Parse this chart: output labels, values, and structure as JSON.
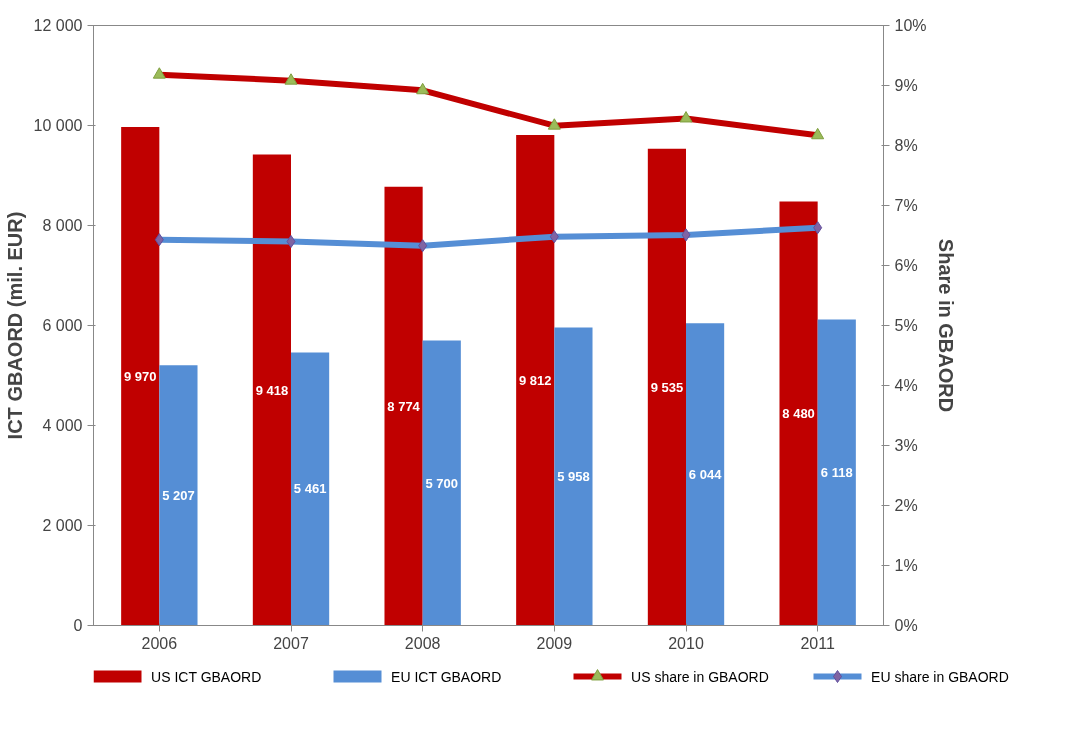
{
  "chart_data": {
    "type": "bar",
    "ylabel": "ICT GBAORD (mil. EUR)",
    "y2label": "Share in GBAORD",
    "categories": [
      "2006",
      "2007",
      "2008",
      "2009",
      "2010",
      "2011"
    ],
    "series": [
      {
        "name": "US ICT GBAORD",
        "color": "#c00000",
        "values": [
          9970,
          9418,
          8774,
          9812,
          9535,
          8480
        ],
        "value_labels": [
          "9 970",
          "9 418",
          "8 774",
          "9 812",
          "9 535",
          "8 480"
        ]
      },
      {
        "name": "EU ICT GBAORD",
        "color": "#558ed5",
        "values": [
          5207,
          5461,
          5700,
          5958,
          6044,
          6118
        ],
        "value_labels": [
          "5 207",
          "5 461",
          "5 700",
          "5 958",
          "6 044",
          "6 118"
        ]
      },
      {
        "name": "US share in GBAORD",
        "type": "line",
        "axis": "y2",
        "color": "#c00000",
        "marker": "triangle",
        "values": [
          9.18,
          9.08,
          8.92,
          8.33,
          8.45,
          8.17
        ]
      },
      {
        "name": "EU share in GBAORD",
        "type": "line",
        "axis": "y2",
        "color": "#558ed5",
        "marker": "diamond",
        "values": [
          6.43,
          6.4,
          6.33,
          6.48,
          6.51,
          6.63
        ]
      }
    ],
    "ylim": [
      0,
      12000
    ],
    "yticks": [
      {
        "value": 0,
        "label": "0"
      },
      {
        "value": 2000,
        "label": "2 000"
      },
      {
        "value": 4000,
        "label": "4 000"
      },
      {
        "value": 6000,
        "label": "6 000"
      },
      {
        "value": 8000,
        "label": "8 000"
      },
      {
        "value": 10000,
        "label": "10 000"
      },
      {
        "value": 12000,
        "label": "12 000"
      }
    ],
    "y2lim": [
      0,
      10
    ],
    "y2ticks": [
      {
        "value": 0,
        "label": "0%"
      },
      {
        "value": 1,
        "label": "1%"
      },
      {
        "value": 2,
        "label": "2%"
      },
      {
        "value": 3,
        "label": "3%"
      },
      {
        "value": 4,
        "label": "4%"
      },
      {
        "value": 5,
        "label": "5%"
      },
      {
        "value": 6,
        "label": "6%"
      },
      {
        "value": 7,
        "label": "7%"
      },
      {
        "value": 8,
        "label": "8%"
      },
      {
        "value": 9,
        "label": "9%"
      },
      {
        "value": 10,
        "label": "10%"
      }
    ],
    "legend": "bottom"
  }
}
